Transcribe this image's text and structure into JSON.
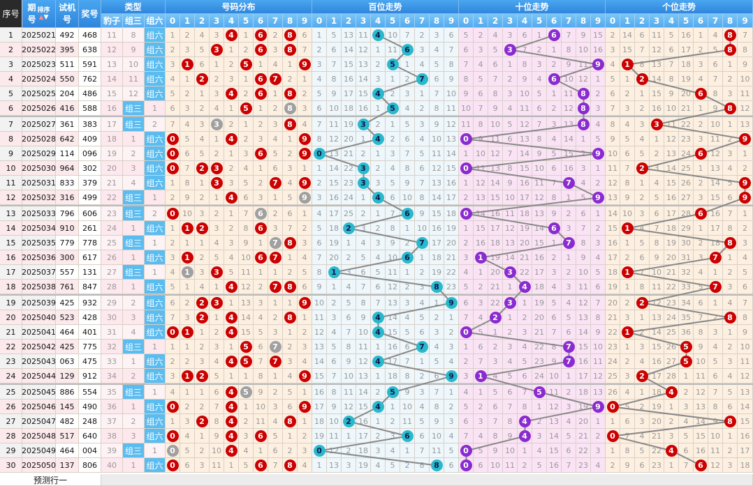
{
  "header": {
    "seq": "序号",
    "period_top": "期",
    "period_bottom": "号",
    "sort": "排序",
    "test_top": "试机",
    "test_bottom": "号",
    "prize": "奖号",
    "type": "类型",
    "type_cols": [
      "豹子",
      "组三",
      "组六"
    ],
    "dist": "号码分布",
    "hundreds": "百位走势",
    "tens": "十位走势",
    "units": "个位走势",
    "digits": [
      "0",
      "1",
      "2",
      "3",
      "4",
      "5",
      "6",
      "7",
      "8",
      "9"
    ]
  },
  "rows": [
    {
      "seq": "1",
      "period": "2025021",
      "test": "492",
      "prize": "468"
    },
    {
      "seq": "2",
      "period": "2025022",
      "test": "395",
      "prize": "638"
    },
    {
      "seq": "3",
      "period": "2025023",
      "test": "511",
      "prize": "591"
    },
    {
      "seq": "4",
      "period": "2025024",
      "test": "550",
      "prize": "762"
    },
    {
      "seq": "5",
      "period": "2025025",
      "test": "204",
      "prize": "486"
    },
    {
      "seq": "6",
      "period": "2025026",
      "test": "416",
      "prize": "588"
    },
    {
      "seq": "7",
      "period": "2025027",
      "test": "361",
      "prize": "383"
    },
    {
      "seq": "8",
      "period": "2025028",
      "test": "642",
      "prize": "409"
    },
    {
      "seq": "9",
      "period": "2025029",
      "test": "114",
      "prize": "096"
    },
    {
      "seq": "10",
      "period": "2025030",
      "test": "964",
      "prize": "302"
    },
    {
      "seq": "11",
      "period": "2025031",
      "test": "833",
      "prize": "379"
    },
    {
      "seq": "12",
      "period": "2025032",
      "test": "316",
      "prize": "499"
    },
    {
      "seq": "13",
      "period": "2025033",
      "test": "796",
      "prize": "606"
    },
    {
      "seq": "14",
      "period": "2025034",
      "test": "910",
      "prize": "261"
    },
    {
      "seq": "15",
      "period": "2025035",
      "test": "779",
      "prize": "778"
    },
    {
      "seq": "16",
      "period": "2025036",
      "test": "300",
      "prize": "617"
    },
    {
      "seq": "17",
      "period": "2025037",
      "test": "557",
      "prize": "131"
    },
    {
      "seq": "18",
      "period": "2025038",
      "test": "761",
      "prize": "847"
    },
    {
      "seq": "19",
      "period": "2025039",
      "test": "425",
      "prize": "932"
    },
    {
      "seq": "20",
      "period": "2025040",
      "test": "523",
      "prize": "428"
    },
    {
      "seq": "21",
      "period": "2025041",
      "test": "464",
      "prize": "401"
    },
    {
      "seq": "22",
      "period": "2025042",
      "test": "425",
      "prize": "775"
    },
    {
      "seq": "23",
      "period": "2025043",
      "test": "063",
      "prize": "475"
    },
    {
      "seq": "24",
      "period": "2025044",
      "test": "129",
      "prize": "912"
    },
    {
      "seq": "25",
      "period": "2025045",
      "test": "886",
      "prize": "554"
    },
    {
      "seq": "26",
      "period": "2025046",
      "test": "145",
      "prize": "490"
    },
    {
      "seq": "27",
      "period": "2025047",
      "test": "482",
      "prize": "248"
    },
    {
      "seq": "28",
      "period": "2025048",
      "test": "517",
      "prize": "640"
    },
    {
      "seq": "29",
      "period": "2025049",
      "test": "464",
      "prize": "004"
    },
    {
      "seq": "30",
      "period": "2025050",
      "test": "137",
      "prize": "806"
    }
  ],
  "first_row_omissions": {
    "baozi": 11,
    "zusan": 8,
    "zuliu": 1,
    "dist": [
      1,
      2,
      4,
      3,
      1,
      1,
      1,
      2,
      1,
      6
    ],
    "hundreds": [
      1,
      5,
      13,
      11,
      1,
      10,
      7,
      2,
      3,
      6
    ],
    "tens": [
      5,
      2,
      4,
      3,
      6,
      1,
      1,
      7,
      9,
      15
    ],
    "units": [
      2,
      14,
      6,
      11,
      5,
      16,
      1,
      4,
      1,
      7
    ]
  },
  "footer": {
    "label": "预测行一"
  },
  "colors": {
    "header": "#3d96e6",
    "type_hit": "#5bbcf0",
    "dist_ball": "#cc0000",
    "repeat_ball": "#a0a0a0",
    "hundreds_ball": "#2ab8cc",
    "tens_ball": "#8a2bd0",
    "units_ball": "#cc0000",
    "hundreds_bg": "#eef7fb",
    "tens_bg": "#fbe3f6",
    "units_bg": "#fdf0e0",
    "dist_bg": "#fdf0e0",
    "line": "#888888"
  }
}
